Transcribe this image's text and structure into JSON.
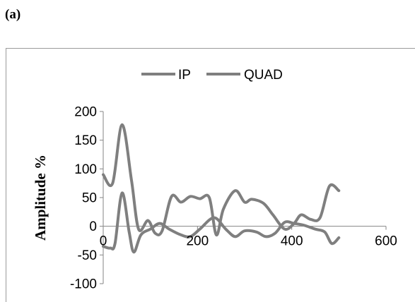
{
  "panel_label": "(a)",
  "chart_data": {
    "type": "line",
    "title": "",
    "xlabel": "",
    "ylabel": "Amplitude %",
    "xlim": [
      0,
      600
    ],
    "ylim": [
      -100,
      200
    ],
    "x_ticks": [
      0,
      200,
      400,
      600
    ],
    "y_ticks": [
      -100,
      -50,
      0,
      50,
      100,
      150,
      200
    ],
    "grid": false,
    "legend_position": "top",
    "series_color": "#7f7f7f",
    "series": [
      {
        "name": "IP",
        "x": [
          0,
          20,
          40,
          60,
          75,
          95,
          110,
          125,
          145,
          165,
          185,
          205,
          225,
          240,
          255,
          280,
          300,
          315,
          340,
          360,
          385,
          405,
          420,
          440,
          460,
          480,
          500
        ],
        "y": [
          90,
          75,
          177,
          80,
          -5,
          10,
          -12,
          -8,
          52,
          42,
          52,
          48,
          50,
          -15,
          30,
          62,
          42,
          47,
          40,
          20,
          -5,
          5,
          20,
          12,
          15,
          70,
          62
        ]
      },
      {
        "name": "QUAD",
        "x": [
          0,
          15,
          25,
          40,
          55,
          65,
          80,
          100,
          120,
          140,
          165,
          185,
          205,
          235,
          260,
          280,
          300,
          325,
          345,
          365,
          385,
          405,
          425,
          450,
          470,
          485,
          500
        ],
        "y": [
          -35,
          -38,
          -30,
          58,
          -10,
          -45,
          -15,
          -5,
          5,
          -5,
          -15,
          -18,
          -5,
          15,
          -5,
          -18,
          -8,
          -10,
          -18,
          -12,
          7,
          5,
          2,
          -5,
          -10,
          -30,
          -20
        ]
      }
    ]
  }
}
